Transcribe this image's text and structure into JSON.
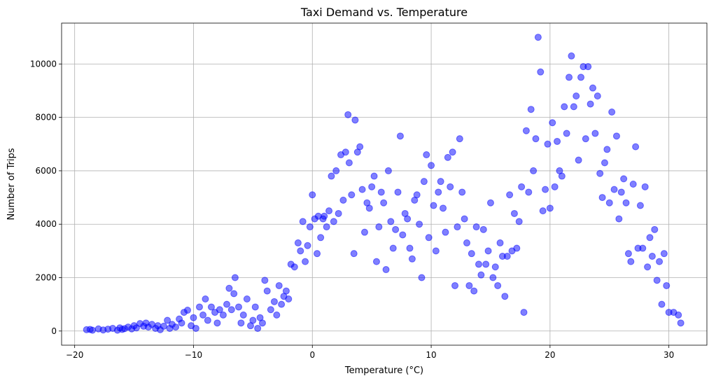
{
  "chart_data": {
    "type": "scatter",
    "title": "Taxi Demand vs. Temperature",
    "x_label": "Temperature (°C)",
    "y_label": "Number of Trips",
    "color": "blue",
    "alpha": 0.5,
    "grid": true,
    "xlim": [
      -21.1,
      33.2
    ],
    "ylim": [
      -530,
      11530
    ],
    "xticks": [
      {
        "value": -20,
        "label": "−20"
      },
      {
        "value": -10,
        "label": "−10"
      },
      0,
      10,
      20,
      30
    ],
    "yticks": [
      0,
      2000,
      4000,
      6000,
      8000,
      10000
    ],
    "x": [
      -19,
      -18.7,
      -18.5,
      -18,
      -17.6,
      -17.2,
      -16.8,
      -16.4,
      -16.2,
      -16,
      -15.8,
      -15.5,
      -15.2,
      -15,
      -14.8,
      -14.5,
      -14.2,
      -14,
      -13.8,
      -13.5,
      -13.2,
      -13,
      -12.8,
      -12.5,
      -12.2,
      -12,
      -11.8,
      -11.5,
      -11.2,
      -11,
      -10.8,
      -10.5,
      -10.2,
      -10,
      -9.8,
      -9.5,
      -9.2,
      -9,
      -8.8,
      -8.5,
      -8.2,
      -8,
      -7.8,
      -7.5,
      -7.2,
      -7,
      -6.8,
      -6.6,
      -6.5,
      -6.2,
      -6,
      -5.8,
      -5.5,
      -5.2,
      -5,
      -4.8,
      -4.6,
      -4.4,
      -4.2,
      -4,
      -3.8,
      -3.5,
      -3.2,
      -3,
      -2.8,
      -2.6,
      -2.4,
      -2.2,
      -2,
      -1.8,
      -1.5,
      -1.2,
      -1,
      -0.8,
      -0.6,
      -0.4,
      -0.2,
      0,
      0.2,
      0.4,
      0.5,
      0.7,
      0.9,
      1,
      1.2,
      1.4,
      1.6,
      1.8,
      2,
      2.2,
      2.4,
      2.6,
      2.8,
      3,
      3.1,
      3.3,
      3.5,
      3.6,
      3.8,
      4,
      4.2,
      4.4,
      4.6,
      4.8,
      5,
      5.2,
      5.4,
      5.6,
      5.8,
      6,
      6.2,
      6.4,
      6.6,
      6.8,
      7,
      7.2,
      7.4,
      7.6,
      7.8,
      8,
      8.2,
      8.4,
      8.6,
      8.8,
      9,
      9.2,
      9.4,
      9.6,
      9.8,
      10,
      10.2,
      10.4,
      10.6,
      10.8,
      11,
      11.2,
      11.4,
      11.6,
      11.8,
      12,
      12.2,
      12.4,
      12.6,
      12.8,
      13,
      13.2,
      13.4,
      13.6,
      13.8,
      14,
      14.2,
      14.4,
      14.6,
      14.8,
      15,
      15.2,
      15.4,
      15.6,
      15.8,
      16,
      16.2,
      16.4,
      16.6,
      16.8,
      17,
      17.2,
      17.4,
      17.6,
      17.8,
      18,
      18.2,
      18.4,
      18.6,
      18.8,
      19,
      19.2,
      19.4,
      19.6,
      19.8,
      20,
      20.2,
      20.4,
      20.6,
      20.8,
      21,
      21.2,
      21.4,
      21.6,
      21.8,
      22,
      22.2,
      22.4,
      22.6,
      22.8,
      23,
      23.2,
      23.4,
      23.6,
      23.8,
      24,
      24.2,
      24.4,
      24.6,
      24.8,
      25,
      25.2,
      25.4,
      25.6,
      25.8,
      26,
      26.2,
      26.4,
      26.6,
      26.8,
      27,
      27.2,
      27.4,
      27.6,
      27.8,
      28,
      28.2,
      28.4,
      28.6,
      28.8,
      29,
      29.2,
      29.4,
      29.6,
      29.8,
      30,
      30.4,
      30.8,
      31
    ],
    "y": [
      50,
      60,
      30,
      80,
      40,
      70,
      100,
      30,
      120,
      60,
      90,
      150,
      80,
      200,
      120,
      280,
      180,
      300,
      150,
      250,
      100,
      200,
      50,
      180,
      400,
      100,
      250,
      150,
      450,
      300,
      700,
      780,
      200,
      500,
      100,
      900,
      600,
      1200,
      400,
      900,
      700,
      300,
      800,
      600,
      1000,
      1600,
      800,
      1400,
      2000,
      900,
      300,
      600,
      1200,
      200,
      400,
      900,
      100,
      500,
      300,
      1900,
      1500,
      800,
      1100,
      600,
      1700,
      1000,
      1300,
      1500,
      1200,
      2500,
      2400,
      3300,
      3000,
      4100,
      2600,
      3200,
      3900,
      5100,
      4200,
      2900,
      4300,
      3500,
      4200,
      4300,
      3900,
      4500,
      5800,
      4100,
      6000,
      4400,
      6600,
      4900,
      6700,
      8100,
      6300,
      5100,
      2900,
      7900,
      6700,
      6900,
      5300,
      3700,
      4800,
      4600,
      5400,
      5800,
      2600,
      3900,
      5200,
      4800,
      2300,
      6000,
      4100,
      3100,
      3800,
      5200,
      7300,
      3600,
      4400,
      4200,
      3100,
      2700,
      4900,
      5100,
      4000,
      2000,
      5600,
      6600,
      3500,
      6200,
      4700,
      3000,
      5200,
      5600,
      4600,
      3700,
      6500,
      5400,
      6700,
      1700,
      3900,
      7200,
      5200,
      4200,
      3300,
      1700,
      2900,
      1500,
      3900,
      2500,
      2100,
      3800,
      2500,
      3000,
      4800,
      2000,
      2400,
      1700,
      3300,
      2800,
      1300,
      2800,
      5100,
      3000,
      4400,
      3100,
      4100,
      5400,
      700,
      7500,
      5200,
      8300,
      6000,
      7200,
      11000,
      9700,
      4500,
      5300,
      7000,
      4600,
      7800,
      5400,
      7100,
      6000,
      5800,
      8400,
      7400,
      9500,
      10300,
      8400,
      8800,
      6400,
      9500,
      9900,
      7200,
      9900,
      8500,
      9100,
      7400,
      8800,
      5900,
      5000,
      6300,
      6800,
      4800,
      8200,
      5300,
      7300,
      4200,
      5200,
      5700,
      4800,
      2900,
      2600,
      5500,
      6900,
      3100,
      4700,
      3100,
      5400,
      2400,
      3500,
      2800,
      3800,
      1900,
      2600,
      1000,
      2900,
      1700,
      700,
      700,
      600,
      300
    ]
  }
}
